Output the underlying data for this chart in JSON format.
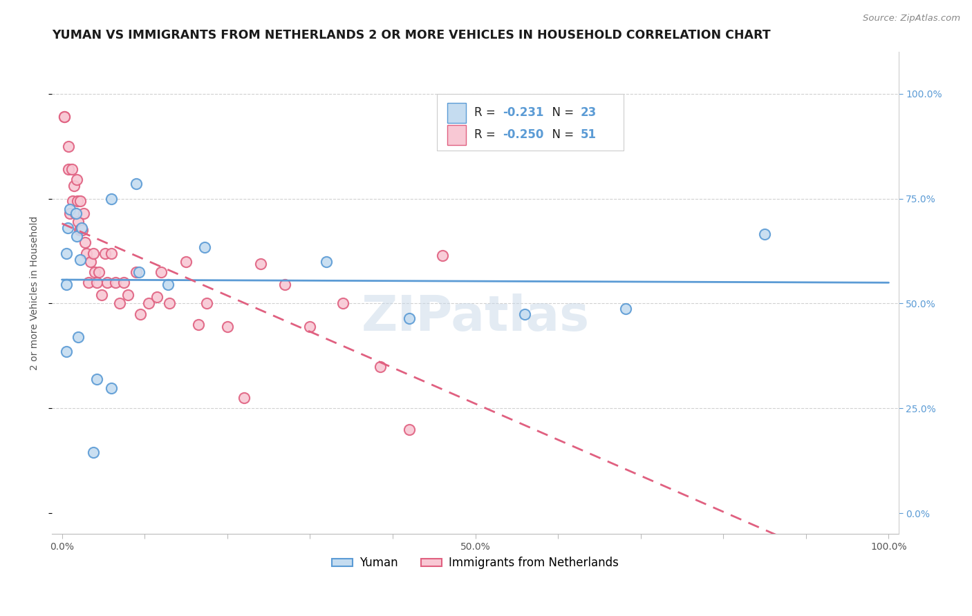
{
  "title": "YUMAN VS IMMIGRANTS FROM NETHERLANDS 2 OR MORE VEHICLES IN HOUSEHOLD CORRELATION CHART",
  "source": "Source: ZipAtlas.com",
  "ylabel": "2 or more Vehicles in Household",
  "R1": -0.231,
  "N1": 23,
  "R2": -0.25,
  "N2": 51,
  "color_blue_fill": "#c5dcf0",
  "color_blue_edge": "#5b9bd5",
  "color_pink_fill": "#f8c8d4",
  "color_pink_edge": "#e06080",
  "line_color_blue": "#5b9bd5",
  "line_color_pink": "#e06080",
  "bg_color": "#ffffff",
  "grid_color": "#d0d0d0",
  "blue_x": [
    0.005,
    0.038,
    0.005,
    0.007,
    0.01,
    0.017,
    0.018,
    0.024,
    0.022,
    0.005,
    0.06,
    0.093,
    0.128,
    0.173,
    0.32,
    0.42,
    0.56,
    0.682,
    0.85,
    0.02,
    0.06,
    0.09,
    0.042
  ],
  "blue_y": [
    0.385,
    0.145,
    0.62,
    0.68,
    0.725,
    0.715,
    0.66,
    0.68,
    0.605,
    0.545,
    0.75,
    0.575,
    0.545,
    0.635,
    0.6,
    0.465,
    0.475,
    0.488,
    0.665,
    0.42,
    0.298,
    0.785,
    0.32
  ],
  "pink_x": [
    0.003,
    0.003,
    0.008,
    0.008,
    0.01,
    0.012,
    0.013,
    0.015,
    0.016,
    0.018,
    0.019,
    0.02,
    0.021,
    0.022,
    0.023,
    0.025,
    0.026,
    0.028,
    0.03,
    0.032,
    0.035,
    0.038,
    0.04,
    0.042,
    0.045,
    0.048,
    0.052,
    0.055,
    0.06,
    0.065,
    0.07,
    0.075,
    0.08,
    0.09,
    0.095,
    0.105,
    0.115,
    0.12,
    0.13,
    0.15,
    0.165,
    0.175,
    0.2,
    0.22,
    0.24,
    0.27,
    0.3,
    0.34,
    0.385,
    0.42,
    0.46
  ],
  "pink_y": [
    0.945,
    0.945,
    0.875,
    0.82,
    0.715,
    0.82,
    0.745,
    0.78,
    0.715,
    0.795,
    0.745,
    0.695,
    0.675,
    0.745,
    0.675,
    0.675,
    0.715,
    0.645,
    0.62,
    0.55,
    0.6,
    0.62,
    0.575,
    0.55,
    0.575,
    0.52,
    0.62,
    0.55,
    0.62,
    0.55,
    0.5,
    0.55,
    0.52,
    0.575,
    0.475,
    0.5,
    0.515,
    0.575,
    0.5,
    0.6,
    0.45,
    0.5,
    0.445,
    0.275,
    0.595,
    0.545,
    0.445,
    0.5,
    0.35,
    0.2,
    0.615
  ],
  "legend_label1": "Yuman",
  "legend_label2": "Immigrants from Netherlands",
  "title_fontsize": 12.5,
  "source_fontsize": 9.5,
  "axis_label_fontsize": 10,
  "tick_fontsize": 10,
  "legend_fontsize": 12
}
